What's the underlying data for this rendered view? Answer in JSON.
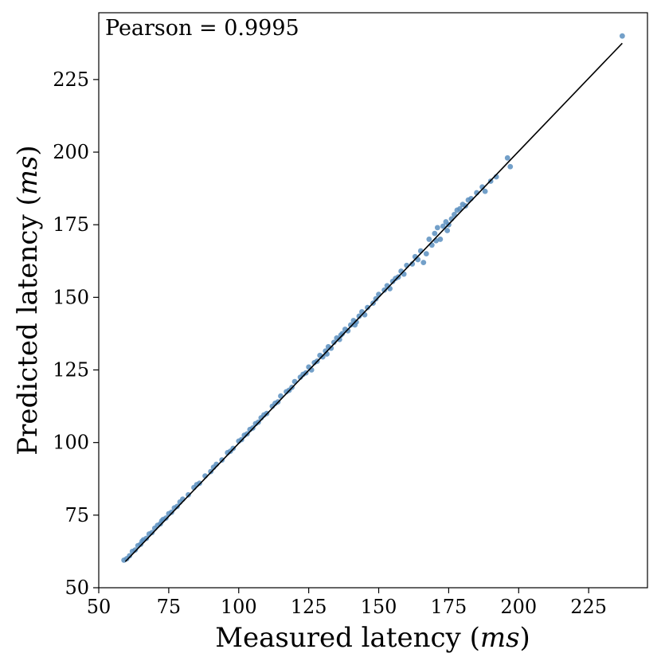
{
  "chart_data": {
    "type": "scatter",
    "title": "",
    "xlabel": "Measured latency",
    "xlabel_unit": "ms",
    "ylabel": "Predicted latency",
    "ylabel_unit": "ms",
    "xlim": [
      50,
      246
    ],
    "ylim": [
      50,
      248
    ],
    "x_ticks": [
      50,
      75,
      100,
      125,
      150,
      175,
      200,
      225
    ],
    "y_ticks": [
      50,
      75,
      100,
      125,
      150,
      175,
      200,
      225
    ],
    "grid": false,
    "legend": "none",
    "annotation": "Pearson = 0.9995",
    "point_color": "#5b8fbf",
    "line_color": "#000000",
    "fit_line": {
      "x": [
        59.5,
        237
      ],
      "y": [
        59,
        237.5
      ]
    },
    "points": [
      [
        59,
        59.5
      ],
      [
        61,
        61
      ],
      [
        62,
        62.5
      ],
      [
        63,
        63
      ],
      [
        64,
        64.5
      ],
      [
        65,
        65
      ],
      [
        66,
        66.5
      ],
      [
        67,
        67
      ],
      [
        68,
        68.5
      ],
      [
        69,
        69
      ],
      [
        70,
        70.5
      ],
      [
        71,
        71.5
      ],
      [
        72,
        72
      ],
      [
        73,
        73.5
      ],
      [
        74,
        74
      ],
      [
        75,
        75.5
      ],
      [
        76,
        76
      ],
      [
        77,
        77.5
      ],
      [
        78,
        78
      ],
      [
        80,
        80.5
      ],
      [
        82,
        82
      ],
      [
        84,
        84.5
      ],
      [
        86,
        86
      ],
      [
        88,
        88.5
      ],
      [
        90,
        90
      ],
      [
        92,
        92.5
      ],
      [
        94,
        94
      ],
      [
        96,
        96.5
      ],
      [
        98,
        98
      ],
      [
        100,
        100.5
      ],
      [
        101,
        101
      ],
      [
        102,
        102.5
      ],
      [
        103,
        103
      ],
      [
        104,
        104.5
      ],
      [
        105,
        105
      ],
      [
        106,
        106.5
      ],
      [
        107,
        107
      ],
      [
        108,
        108.5
      ],
      [
        110,
        110
      ],
      [
        112,
        112.5
      ],
      [
        114,
        114
      ],
      [
        115,
        116
      ],
      [
        117,
        117.5
      ],
      [
        119,
        119
      ],
      [
        120,
        121
      ],
      [
        122,
        122.5
      ],
      [
        124,
        124
      ],
      [
        125,
        126
      ],
      [
        126,
        125
      ],
      [
        127,
        127.5
      ],
      [
        128,
        128
      ],
      [
        129,
        130
      ],
      [
        130,
        129.5
      ],
      [
        131,
        131.5
      ],
      [
        132,
        133
      ],
      [
        133,
        132.5
      ],
      [
        134,
        134.5
      ],
      [
        135,
        136
      ],
      [
        136,
        135.5
      ],
      [
        137,
        137.5
      ],
      [
        138,
        139
      ],
      [
        139,
        138.5
      ],
      [
        140,
        140.5
      ],
      [
        141,
        142
      ],
      [
        142,
        141.5
      ],
      [
        143,
        143.5
      ],
      [
        144,
        145
      ],
      [
        145,
        144
      ],
      [
        146,
        146.5
      ],
      [
        148,
        148
      ],
      [
        150,
        151
      ],
      [
        152,
        152.5
      ],
      [
        153,
        154
      ],
      [
        155,
        155.5
      ],
      [
        157,
        157
      ],
      [
        158,
        159
      ],
      [
        160,
        161
      ],
      [
        162,
        161.5
      ],
      [
        163,
        164
      ],
      [
        165,
        166
      ],
      [
        166,
        162
      ],
      [
        167,
        165
      ],
      [
        168,
        170
      ],
      [
        169,
        168
      ],
      [
        170,
        172
      ],
      [
        171,
        174
      ],
      [
        172,
        170
      ],
      [
        173,
        174.5
      ],
      [
        174,
        176
      ],
      [
        175,
        175
      ],
      [
        176,
        177
      ],
      [
        177,
        178.5
      ],
      [
        178,
        180
      ],
      [
        179,
        180.5
      ],
      [
        180,
        182
      ],
      [
        182,
        183.5
      ],
      [
        183,
        184
      ],
      [
        185,
        186
      ],
      [
        187,
        188
      ],
      [
        188,
        186.5
      ],
      [
        190,
        190
      ],
      [
        192,
        191.5
      ],
      [
        196,
        198
      ],
      [
        197,
        195
      ],
      [
        237,
        240
      ],
      [
        60,
        60
      ],
      [
        65.5,
        66
      ],
      [
        72.5,
        73
      ],
      [
        79,
        79.5
      ],
      [
        85,
        85.5
      ],
      [
        91,
        91.5
      ],
      [
        97,
        97
      ],
      [
        109,
        109.5
      ],
      [
        113,
        113.5
      ],
      [
        118,
        118
      ],
      [
        123,
        123.5
      ],
      [
        131.5,
        130.5
      ],
      [
        136.5,
        137
      ],
      [
        141.5,
        140.5
      ],
      [
        149,
        149.5
      ],
      [
        154,
        153
      ],
      [
        156,
        156.5
      ],
      [
        159,
        158
      ],
      [
        164,
        163
      ],
      [
        170.5,
        169.5
      ],
      [
        174.5,
        173
      ],
      [
        181,
        181.5
      ]
    ]
  }
}
